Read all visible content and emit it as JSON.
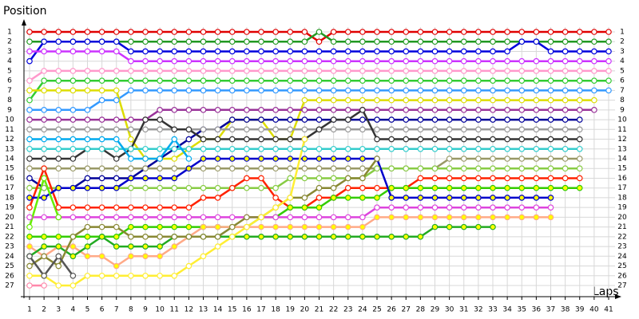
{
  "chart_data": {
    "type": "line",
    "title": "Position",
    "x_label": "Laps",
    "x": [
      1,
      2,
      3,
      4,
      5,
      6,
      7,
      8,
      9,
      10,
      11,
      12,
      13,
      14,
      15,
      16,
      17,
      18,
      19,
      20,
      21,
      22,
      23,
      24,
      25,
      26,
      27,
      28,
      29,
      30,
      31,
      32,
      33,
      34,
      35,
      36,
      37,
      38,
      39,
      40,
      41
    ],
    "xlim": [
      1,
      41
    ],
    "xticks": [
      1,
      2,
      3,
      4,
      5,
      6,
      7,
      8,
      9,
      10,
      11,
      12,
      13,
      14,
      15,
      16,
      17,
      18,
      19,
      20,
      21,
      22,
      23,
      24,
      25,
      26,
      27,
      28,
      29,
      30,
      31,
      32,
      33,
      34,
      35,
      36,
      37,
      38,
      39,
      40,
      41
    ],
    "ylim": [
      1,
      27
    ],
    "yticks": [
      1,
      2,
      3,
      4,
      5,
      6,
      7,
      8,
      9,
      10,
      11,
      12,
      13,
      14,
      15,
      16,
      17,
      18,
      19,
      20,
      21,
      22,
      23,
      24,
      25,
      26,
      27
    ],
    "y_inverted": true,
    "grid": true,
    "series": [
      {
        "color": "#e00000",
        "values": [
          1,
          1,
          1,
          1,
          1,
          1,
          1,
          1,
          1,
          1,
          1,
          1,
          1,
          1,
          1,
          1,
          1,
          1,
          1,
          1,
          2,
          1,
          1,
          1,
          1,
          1,
          1,
          1,
          1,
          1,
          1,
          1,
          1,
          1,
          1,
          1,
          1,
          1,
          1,
          1,
          1
        ]
      },
      {
        "color": "#229922",
        "values": [
          2,
          2,
          2,
          2,
          2,
          2,
          2,
          2,
          2,
          2,
          2,
          2,
          2,
          2,
          2,
          2,
          2,
          2,
          2,
          2,
          1,
          2,
          2,
          2,
          2,
          2,
          2,
          2,
          2,
          2,
          2,
          2,
          2,
          2,
          2,
          2,
          2,
          2,
          2,
          2,
          2
        ]
      },
      {
        "color": "#0000dd",
        "values": [
          4,
          2,
          2,
          2,
          2,
          2,
          2,
          3,
          3,
          3,
          3,
          3,
          3,
          3,
          3,
          3,
          3,
          3,
          3,
          3,
          3,
          3,
          3,
          3,
          3,
          3,
          3,
          3,
          3,
          3,
          3,
          3,
          3,
          3,
          2,
          2,
          3,
          3,
          3,
          3,
          3
        ]
      },
      {
        "color": "#cc33ff",
        "values": [
          3,
          3,
          3,
          3,
          3,
          3,
          3,
          4,
          4,
          4,
          4,
          4,
          4,
          4,
          4,
          4,
          4,
          4,
          4,
          4,
          4,
          4,
          4,
          4,
          4,
          4,
          4,
          4,
          4,
          4,
          4,
          4,
          4,
          4,
          4,
          4,
          4,
          4,
          4,
          4,
          4
        ]
      },
      {
        "color": "#ff99cc",
        "values": [
          6,
          5,
          5,
          5,
          5,
          5,
          5,
          5,
          5,
          5,
          5,
          5,
          5,
          5,
          5,
          5,
          5,
          5,
          5,
          5,
          5,
          5,
          5,
          5,
          5,
          5,
          5,
          5,
          5,
          5,
          5,
          5,
          5,
          5,
          5,
          5,
          5,
          5,
          5,
          5,
          5
        ]
      },
      {
        "color": "#33cc33",
        "values": [
          8,
          6,
          6,
          6,
          6,
          6,
          6,
          6,
          6,
          6,
          6,
          6,
          6,
          6,
          6,
          6,
          6,
          6,
          6,
          6,
          6,
          6,
          6,
          6,
          6,
          6,
          6,
          6,
          6,
          6,
          6,
          6,
          6,
          6,
          6,
          6,
          6,
          6,
          6,
          6,
          6
        ]
      },
      {
        "color": "#3399ff",
        "values": [
          9,
          9,
          9,
          9,
          9,
          8,
          8,
          7,
          7,
          7,
          7,
          7,
          7,
          7,
          7,
          7,
          7,
          7,
          7,
          7,
          7,
          7,
          7,
          7,
          7,
          7,
          7,
          7,
          7,
          7,
          7,
          7,
          7,
          7,
          7,
          7,
          7,
          7,
          7,
          7,
          7
        ]
      },
      {
        "color": "#dddd00",
        "values": [
          7,
          7,
          7,
          7,
          7,
          7,
          7,
          12,
          14,
          14,
          14,
          13,
          12,
          12,
          10,
          10,
          10,
          12,
          12,
          8,
          8,
          8,
          8,
          8,
          8,
          8,
          8,
          8,
          8,
          8,
          8,
          8,
          8,
          8,
          8,
          8,
          8,
          8,
          8,
          8,
          null
        ]
      },
      {
        "color": "#993399",
        "values": [
          10,
          10,
          10,
          10,
          10,
          10,
          10,
          10,
          10,
          9,
          9,
          9,
          9,
          9,
          9,
          9,
          9,
          9,
          9,
          9,
          9,
          9,
          9,
          9,
          9,
          9,
          9,
          9,
          9,
          9,
          9,
          9,
          9,
          9,
          9,
          9,
          9,
          9,
          9,
          9,
          null
        ]
      },
      {
        "color": "#000099",
        "values": [
          16,
          17,
          17,
          17,
          16,
          16,
          16,
          16,
          15,
          14,
          13,
          12,
          11,
          11,
          10,
          10,
          10,
          10,
          10,
          10,
          10,
          10,
          10,
          10,
          10,
          10,
          10,
          10,
          10,
          10,
          10,
          10,
          10,
          10,
          10,
          10,
          10,
          10,
          10,
          null,
          null
        ]
      },
      {
        "color": "#999999",
        "values": [
          11,
          11,
          11,
          11,
          11,
          11,
          11,
          11,
          11,
          11,
          11,
          11,
          11,
          11,
          11,
          11,
          11,
          11,
          11,
          11,
          11,
          11,
          11,
          11,
          11,
          11,
          11,
          11,
          11,
          11,
          11,
          11,
          11,
          11,
          11,
          11,
          11,
          11,
          11,
          null,
          null
        ]
      },
      {
        "color": "#333333",
        "values": [
          14,
          14,
          14,
          14,
          13,
          13,
          14,
          13,
          10,
          10,
          11,
          11,
          12,
          12,
          12,
          12,
          12,
          12,
          12,
          12,
          11,
          10,
          10,
          9,
          12,
          12,
          12,
          12,
          12,
          12,
          12,
          12,
          12,
          12,
          12,
          12,
          12,
          12,
          12,
          null,
          null
        ]
      },
      {
        "color": "#33cccc",
        "values": [
          13,
          13,
          13,
          13,
          13,
          13,
          13,
          13,
          13,
          13,
          13,
          13,
          13,
          13,
          13,
          13,
          13,
          13,
          13,
          13,
          13,
          13,
          13,
          13,
          13,
          13,
          13,
          13,
          13,
          13,
          13,
          13,
          13,
          13,
          13,
          13,
          13,
          13,
          13,
          null,
          null
        ]
      },
      {
        "color": "#999966",
        "values": [
          15,
          15,
          15,
          15,
          15,
          15,
          15,
          15,
          15,
          15,
          15,
          15,
          15,
          15,
          15,
          15,
          15,
          15,
          15,
          15,
          15,
          15,
          15,
          15,
          15,
          15,
          15,
          15,
          15,
          14,
          14,
          14,
          14,
          14,
          14,
          14,
          14,
          14,
          14,
          null,
          null
        ]
      },
      {
        "color": "#88cc44",
        "values": [
          17,
          17,
          17,
          17,
          17,
          17,
          17,
          17,
          17,
          17,
          17,
          17,
          17,
          17,
          17,
          17,
          17,
          17,
          16,
          16,
          16,
          16,
          16,
          16,
          15,
          15,
          15,
          15,
          15,
          15,
          15,
          15,
          15,
          15,
          15,
          15,
          15,
          15,
          15,
          null,
          null
        ]
      },
      {
        "color": "#ff2200",
        "values": [
          19,
          15,
          19,
          19,
          19,
          19,
          19,
          19,
          19,
          19,
          19,
          19,
          18,
          18,
          17,
          16,
          16,
          18,
          19,
          19,
          18,
          18,
          17,
          17,
          17,
          17,
          17,
          16,
          16,
          16,
          16,
          16,
          16,
          16,
          16,
          16,
          16,
          16,
          16,
          null,
          null
        ]
      },
      {
        "color": "#33cc00",
        "marker_fill": "#ffff00",
        "values": [
          22,
          22,
          22,
          22,
          22,
          22,
          22,
          21,
          21,
          21,
          21,
          21,
          21,
          21,
          21,
          21,
          20,
          20,
          19,
          19,
          19,
          18,
          18,
          18,
          18,
          17,
          17,
          17,
          17,
          17,
          17,
          17,
          17,
          17,
          17,
          17,
          17,
          17,
          17,
          null,
          null
        ]
      },
      {
        "color": "#0000cc",
        "marker_fill": "#ffff00",
        "values": [
          18,
          18,
          17,
          17,
          17,
          17,
          17,
          16,
          16,
          16,
          16,
          15,
          14,
          14,
          14,
          14,
          14,
          14,
          14,
          14,
          14,
          14,
          14,
          14,
          14,
          18,
          18,
          18,
          18,
          18,
          18,
          18,
          18,
          18,
          18,
          18,
          18,
          null,
          null,
          null,
          null
        ]
      },
      {
        "color": "#dd44dd",
        "values": [
          20,
          20,
          20,
          20,
          20,
          20,
          20,
          20,
          20,
          20,
          20,
          20,
          20,
          20,
          20,
          20,
          20,
          20,
          20,
          20,
          20,
          20,
          20,
          20,
          19,
          19,
          19,
          19,
          19,
          19,
          19,
          19,
          19,
          19,
          19,
          19,
          19,
          null,
          null,
          null,
          null
        ]
      },
      {
        "color": "#ffaa88",
        "marker_fill": "#ffff00",
        "values": [
          23,
          24,
          23,
          23,
          24,
          24,
          25,
          24,
          24,
          24,
          23,
          22,
          21,
          21,
          21,
          21,
          21,
          21,
          21,
          21,
          21,
          21,
          21,
          21,
          20,
          20,
          20,
          20,
          20,
          20,
          20,
          20,
          20,
          20,
          20,
          20,
          20,
          null,
          null,
          null,
          null
        ]
      },
      {
        "color": "#22aa22",
        "marker_fill": "#ffff00",
        "values": [
          24,
          23,
          23,
          24,
          23,
          22,
          23,
          23,
          23,
          23,
          22,
          22,
          22,
          22,
          22,
          22,
          22,
          22,
          22,
          22,
          22,
          22,
          22,
          22,
          22,
          22,
          22,
          22,
          21,
          21,
          21,
          21,
          21,
          null,
          null,
          null,
          null,
          null,
          null,
          null,
          null
        ]
      },
      {
        "color": "#888833",
        "values": [
          25,
          24,
          25,
          22,
          21,
          21,
          21,
          22,
          22,
          22,
          22,
          22,
          22,
          22,
          21,
          20,
          20,
          19,
          18,
          18,
          17,
          17,
          16,
          16,
          14,
          null,
          null,
          null,
          null,
          null,
          null,
          null,
          null,
          null,
          null,
          null,
          null,
          null,
          null,
          null,
          null
        ]
      },
      {
        "color": "#00aaee",
        "values": [
          12,
          12,
          12,
          12,
          12,
          12,
          12,
          14,
          14,
          14,
          12,
          14,
          null,
          null,
          null,
          null,
          null,
          null,
          null,
          null,
          null,
          null,
          null,
          null,
          null,
          null,
          null,
          null,
          null,
          null,
          null,
          null,
          null,
          null,
          null,
          null,
          null,
          null,
          null,
          null,
          null
        ]
      },
      {
        "color": "#ffee33",
        "values": [
          26,
          26,
          27,
          27,
          26,
          26,
          26,
          26,
          26,
          26,
          26,
          25,
          24,
          23,
          22,
          21,
          20,
          19,
          18,
          12,
          null,
          null,
          null,
          null,
          null,
          null,
          null,
          null,
          null,
          null,
          null,
          null,
          null,
          null,
          null,
          null,
          null,
          null,
          null,
          null,
          null
        ]
      },
      {
        "color": "#555555",
        "values": [
          24,
          26,
          24,
          26,
          null,
          null,
          null,
          null,
          null,
          null,
          null,
          null,
          null,
          null,
          null,
          null,
          null,
          null,
          null,
          null,
          null,
          null,
          null,
          null,
          null,
          null,
          null,
          null,
          null,
          null,
          null,
          null,
          null,
          null,
          null,
          null,
          null,
          null,
          null,
          null,
          null
        ]
      },
      {
        "color": "#ff88aa",
        "values": [
          27,
          27,
          null,
          null,
          null,
          null,
          null,
          null,
          null,
          null,
          null,
          null,
          null,
          null,
          null,
          null,
          null,
          null,
          null,
          null,
          null,
          null,
          null,
          null,
          null,
          null,
          null,
          null,
          null,
          null,
          null,
          null,
          null,
          null,
          null,
          null,
          null,
          null,
          null,
          null,
          null
        ]
      },
      {
        "color": "#66ee00",
        "values": [
          21,
          16,
          20,
          null,
          null,
          null,
          null,
          null,
          null,
          null,
          null,
          null,
          null,
          null,
          null,
          null,
          null,
          null,
          null,
          null,
          null,
          null,
          null,
          null,
          null,
          null,
          null,
          null,
          null,
          null,
          null,
          null,
          null,
          null,
          null,
          null,
          null,
          null,
          null,
          null,
          null
        ]
      }
    ]
  }
}
